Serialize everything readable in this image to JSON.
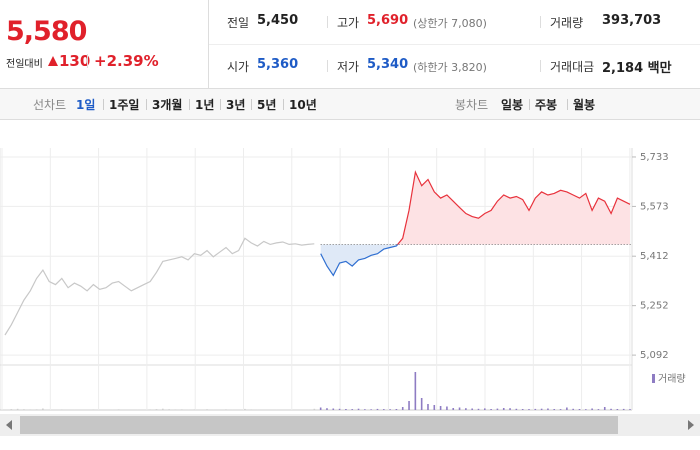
{
  "header": {
    "price": "5,580",
    "change_label": "전일대비",
    "change": "130",
    "change_pct": "+2.39%",
    "color": "#e0212b"
  },
  "stats": [
    [
      {
        "label": "전일",
        "value": "5,450",
        "color": "#222222"
      },
      {
        "label": "고가",
        "value": "5,690",
        "note": "(상한가 7,080)",
        "color": "#e0212b"
      },
      {
        "label": "거래량",
        "value": "393,703",
        "color": "#222222"
      }
    ],
    [
      {
        "label": "시가",
        "value": "5,360",
        "color": "#1e5bc6"
      },
      {
        "label": "저가",
        "value": "5,340",
        "note": "(하한가 3,820)",
        "color": "#1e5bc6"
      },
      {
        "label": "거래대금",
        "value": "2,184 백만",
        "color": "#222222"
      }
    ]
  ],
  "toolbar": {
    "line_chart": {
      "label": "선차트",
      "items": [
        "1일",
        "1주일",
        "3개월",
        "1년",
        "3년",
        "5년",
        "10년"
      ],
      "selected": 0
    },
    "candle_chart": {
      "label": "봉차트",
      "items": [
        "일봉",
        "주봉",
        "월봉"
      ]
    }
  },
  "chart_data": {
    "type": "line",
    "ylim": [
      5060,
      5762
    ],
    "yticks": [
      {
        "value": 5092,
        "label": "5,092"
      },
      {
        "value": 5252,
        "label": "5,252"
      },
      {
        "value": 5412,
        "label": "5,412"
      },
      {
        "value": 5573,
        "label": "5,573"
      },
      {
        "value": 5733,
        "label": "5,733"
      }
    ],
    "grid": true,
    "baseline": 5450,
    "series": [
      {
        "color": "#c8c8c8",
        "values": [
          5157,
          5190,
          5230,
          5270,
          5300,
          5340,
          5367,
          5330,
          5320,
          5340,
          5310,
          5325,
          5315,
          5300,
          5320,
          5305,
          5310,
          5325,
          5330,
          5315,
          5300,
          5310,
          5320,
          5330,
          5360,
          5395,
          5400,
          5405,
          5410,
          5400,
          5420,
          5415,
          5430,
          5410,
          5425,
          5440,
          5420,
          5430,
          5470,
          5455,
          5445,
          5460,
          5450,
          5455,
          5458,
          5450,
          5452,
          5448,
          5450,
          5452
        ],
        "volume": [
          400,
          900,
          1200,
          800,
          600,
          700,
          1500,
          500,
          400,
          600,
          300,
          500,
          400,
          350,
          600,
          450,
          300,
          500,
          700,
          400,
          300,
          500,
          450,
          600,
          900,
          1300,
          800,
          600,
          700,
          500,
          600,
          400,
          800,
          500,
          400,
          700,
          500,
          450,
          1100,
          600,
          500,
          400,
          350,
          500,
          400,
          300,
          450,
          400,
          500,
          1200
        ]
      },
      {
        "color_up": "#e8323c",
        "color_down": "#2f6fd1",
        "fill_up": "#fde2e4",
        "fill_down": "#dfe9f7",
        "values": [
          5420,
          5380,
          5350,
          5390,
          5395,
          5380,
          5400,
          5405,
          5415,
          5420,
          5435,
          5440,
          5445,
          5470,
          5560,
          5684,
          5640,
          5660,
          5620,
          5600,
          5610,
          5590,
          5570,
          5550,
          5540,
          5535,
          5550,
          5560,
          5590,
          5610,
          5600,
          5605,
          5595,
          5560,
          5600,
          5620,
          5610,
          5615,
          5625,
          5620,
          5610,
          5600,
          5615,
          5560,
          5600,
          5590,
          5550,
          5600,
          5590,
          5580
        ],
        "volume": [
          2500,
          1800,
          1500,
          1200,
          1000,
          900,
          1300,
          800,
          700,
          1100,
          900,
          800,
          1000,
          3000,
          9000,
          38000,
          12000,
          6000,
          5000,
          4000,
          3500,
          2000,
          2500,
          1800,
          1500,
          1200,
          1600,
          1000,
          1400,
          2000,
          1800,
          1200,
          1000,
          900,
          1100,
          1300,
          1500,
          1000,
          900,
          2500,
          1200,
          1000,
          800,
          1500,
          900,
          3000,
          1200,
          1000,
          1100,
          900
        ]
      }
    ],
    "volume_name": "거래량",
    "volume_color": "#8e7cc3",
    "volume_prev_color": "#cfcfcf",
    "volume_ylim": [
      0,
      40000
    ]
  }
}
